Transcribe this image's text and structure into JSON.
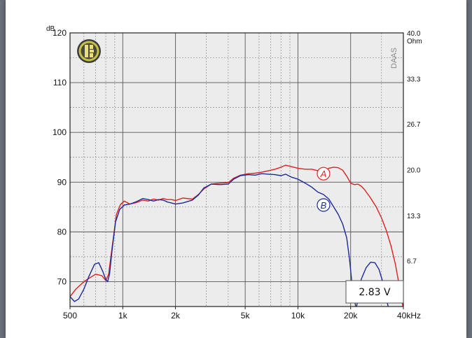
{
  "chart_data": {
    "type": "line",
    "x_scale": "log",
    "xlim": [
      500,
      40000
    ],
    "ylim": [
      65,
      120
    ],
    "y2lim": [
      0,
      40
    ],
    "grid": true,
    "y_unit": "dB",
    "y2_unit": "Ohm",
    "brand": "DAAS",
    "annotation": "2.83 V",
    "x_ticks": [
      {
        "v": 500,
        "label": "500"
      },
      {
        "v": 1000,
        "label": "1k"
      },
      {
        "v": 2000,
        "label": "2k"
      },
      {
        "v": 5000,
        "label": "5k"
      },
      {
        "v": 10000,
        "label": "10k"
      },
      {
        "v": 20000,
        "label": "20k"
      },
      {
        "v": 40000,
        "label": "40kHz"
      }
    ],
    "y_ticks": [
      {
        "v": 70,
        "label": "70"
      },
      {
        "v": 80,
        "label": "80"
      },
      {
        "v": 90,
        "label": "90"
      },
      {
        "v": 100,
        "label": "100"
      },
      {
        "v": 110,
        "label": "110"
      },
      {
        "v": 120,
        "label": "120"
      }
    ],
    "y2_ticks": [
      {
        "v": 6.7,
        "label": "6.7"
      },
      {
        "v": 13.3,
        "label": "13.3"
      },
      {
        "v": 20.0,
        "label": "20.0"
      },
      {
        "v": 26.7,
        "label": "26.7"
      },
      {
        "v": 33.3,
        "label": "33.3"
      },
      {
        "v": 40.0,
        "label": "40.0"
      }
    ],
    "series": [
      {
        "name": "A",
        "color": "#e02020",
        "label_at": [
          14000,
          91.7
        ],
        "points": [
          [
            500,
            67.0
          ],
          [
            540,
            68.5
          ],
          [
            600,
            70.0
          ],
          [
            650,
            70.8
          ],
          [
            700,
            71.5
          ],
          [
            760,
            71.2
          ],
          [
            800,
            70.2
          ],
          [
            830,
            71.5
          ],
          [
            870,
            77.0
          ],
          [
            920,
            83.5
          ],
          [
            970,
            85.5
          ],
          [
            1020,
            86.2
          ],
          [
            1100,
            85.6
          ],
          [
            1200,
            85.9
          ],
          [
            1300,
            86.4
          ],
          [
            1400,
            86.2
          ],
          [
            1500,
            86.6
          ],
          [
            1600,
            86.4
          ],
          [
            1700,
            86.7
          ],
          [
            1800,
            86.5
          ],
          [
            1900,
            86.5
          ],
          [
            2000,
            86.3
          ],
          [
            2200,
            86.8
          ],
          [
            2500,
            86.6
          ],
          [
            2700,
            87.5
          ],
          [
            2900,
            88.6
          ],
          [
            3200,
            89.6
          ],
          [
            3600,
            89.8
          ],
          [
            4000,
            89.9
          ],
          [
            4300,
            90.8
          ],
          [
            4700,
            91.4
          ],
          [
            5200,
            91.7
          ],
          [
            5700,
            91.8
          ],
          [
            6200,
            92.0
          ],
          [
            6800,
            92.3
          ],
          [
            7400,
            92.6
          ],
          [
            8000,
            93.0
          ],
          [
            8500,
            93.4
          ],
          [
            9200,
            93.1
          ],
          [
            10000,
            92.8
          ],
          [
            11000,
            92.6
          ],
          [
            12000,
            92.6
          ],
          [
            13000,
            92.3
          ],
          [
            14000,
            92.0
          ],
          [
            15000,
            92.8
          ],
          [
            16000,
            93.0
          ],
          [
            17000,
            92.9
          ],
          [
            18000,
            92.4
          ],
          [
            19000,
            91.2
          ],
          [
            20000,
            89.8
          ],
          [
            21000,
            89.5
          ],
          [
            22000,
            89.6
          ],
          [
            23000,
            89.2
          ],
          [
            24000,
            88.5
          ],
          [
            26000,
            86.8
          ],
          [
            28000,
            85.0
          ],
          [
            30000,
            82.8
          ],
          [
            32000,
            80.2
          ],
          [
            34000,
            77.2
          ],
          [
            36000,
            73.5
          ],
          [
            38000,
            69.0
          ],
          [
            40000,
            64.5
          ]
        ]
      },
      {
        "name": "B",
        "color": "#1a2a9a",
        "label_at": [
          14000,
          85.4
        ],
        "points": [
          [
            500,
            67.0
          ],
          [
            530,
            66.0
          ],
          [
            560,
            66.5
          ],
          [
            600,
            68.5
          ],
          [
            640,
            71.0
          ],
          [
            690,
            73.5
          ],
          [
            730,
            73.8
          ],
          [
            770,
            72.0
          ],
          [
            800,
            70.4
          ],
          [
            820,
            70.0
          ],
          [
            840,
            71.5
          ],
          [
            870,
            76.5
          ],
          [
            910,
            82.0
          ],
          [
            960,
            84.5
          ],
          [
            1020,
            85.4
          ],
          [
            1100,
            85.6
          ],
          [
            1200,
            86.1
          ],
          [
            1300,
            86.7
          ],
          [
            1400,
            86.5
          ],
          [
            1500,
            86.2
          ],
          [
            1600,
            86.5
          ],
          [
            1700,
            86.4
          ],
          [
            1800,
            86.0
          ],
          [
            1900,
            85.8
          ],
          [
            2000,
            85.6
          ],
          [
            2200,
            85.8
          ],
          [
            2500,
            86.4
          ],
          [
            2700,
            87.4
          ],
          [
            2900,
            88.8
          ],
          [
            3200,
            89.6
          ],
          [
            3600,
            89.5
          ],
          [
            4000,
            89.6
          ],
          [
            4300,
            90.6
          ],
          [
            4700,
            91.3
          ],
          [
            5200,
            91.5
          ],
          [
            5700,
            91.4
          ],
          [
            6200,
            91.7
          ],
          [
            6800,
            91.6
          ],
          [
            7400,
            91.5
          ],
          [
            8000,
            91.3
          ],
          [
            8500,
            91.6
          ],
          [
            9200,
            91.0
          ],
          [
            10000,
            90.6
          ],
          [
            11000,
            89.8
          ],
          [
            12000,
            89.0
          ],
          [
            13000,
            88.0
          ],
          [
            14000,
            87.5
          ],
          [
            15000,
            86.6
          ],
          [
            16000,
            85.0
          ],
          [
            17000,
            83.5
          ],
          [
            18000,
            81.6
          ],
          [
            19000,
            78.8
          ],
          [
            19700,
            74.5
          ],
          [
            20500,
            68.5
          ],
          [
            21500,
            64.5
          ],
          [
            23000,
            70.5
          ],
          [
            24500,
            72.8
          ],
          [
            26000,
            73.9
          ],
          [
            27500,
            73.8
          ],
          [
            29000,
            72.5
          ],
          [
            30500,
            70.0
          ],
          [
            32000,
            66.5
          ],
          [
            33000,
            64.5
          ]
        ]
      }
    ]
  }
}
